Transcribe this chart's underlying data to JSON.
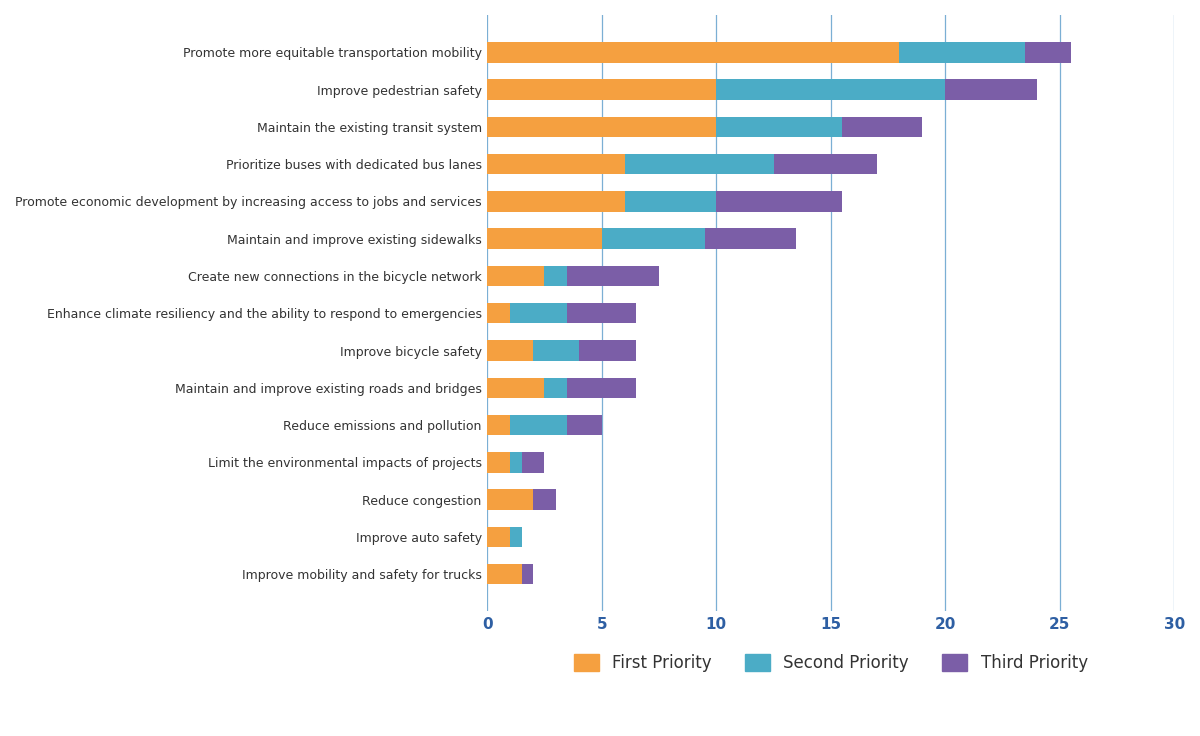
{
  "categories": [
    "Promote more equitable transportation mobility",
    "Improve pedestrian safety",
    "Maintain the existing transit system",
    "Prioritize buses with dedicated bus lanes",
    "Promote economic development by increasing access to jobs and services",
    "Maintain and improve existing sidewalks",
    "Create new connections in the bicycle network",
    "Enhance climate resiliency and the ability to respond to emergencies",
    "Improve bicycle safety",
    "Maintain and improve existing roads and bridges",
    "Reduce emissions and pollution",
    "Limit the environmental impacts of projects",
    "Reduce congestion",
    "Improve auto safety",
    "Improve mobility and safety for trucks"
  ],
  "first_priority": [
    18.0,
    10.0,
    10.0,
    6.0,
    6.0,
    5.0,
    2.5,
    1.0,
    2.0,
    2.5,
    1.0,
    1.0,
    2.0,
    1.0,
    1.5
  ],
  "second_priority": [
    5.5,
    10.0,
    5.5,
    6.5,
    4.0,
    4.5,
    1.0,
    2.5,
    2.0,
    1.0,
    2.5,
    0.5,
    0.0,
    0.5,
    0.0
  ],
  "third_priority": [
    2.0,
    4.0,
    3.5,
    4.5,
    5.5,
    4.0,
    4.0,
    3.0,
    2.5,
    3.0,
    1.5,
    1.0,
    1.0,
    0.0,
    0.5
  ],
  "first_color": "#F5A040",
  "second_color": "#4BACC6",
  "third_color": "#7B5EA7",
  "background_color": "#FFFFFF",
  "xlim": [
    0,
    30
  ],
  "xticks": [
    0,
    5,
    10,
    15,
    20,
    25,
    30
  ],
  "legend_labels": [
    "First Priority",
    "Second Priority",
    "Third Priority"
  ],
  "figsize": [
    12.0,
    7.36
  ],
  "dpi": 100
}
